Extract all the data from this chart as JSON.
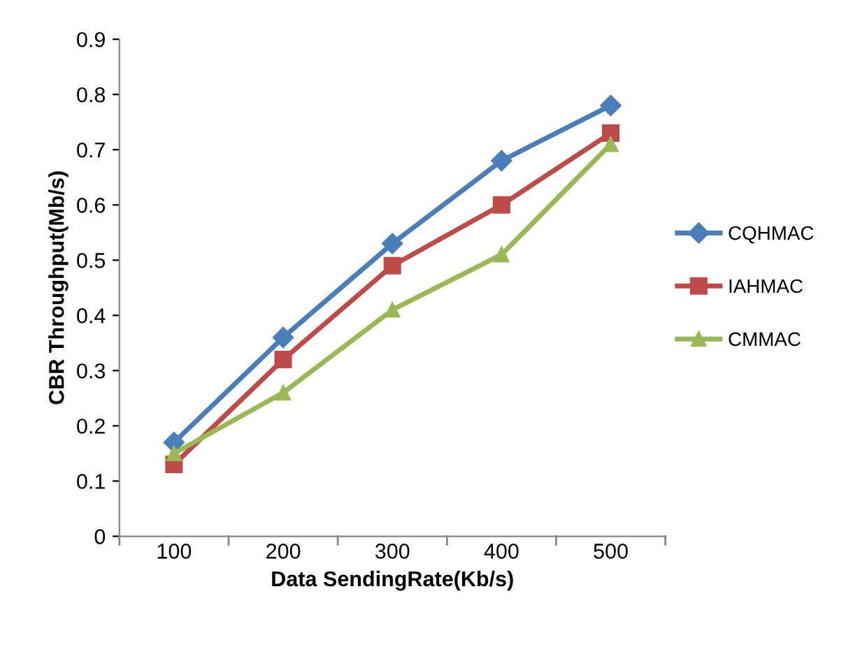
{
  "chart_data": {
    "type": "line",
    "xlabel": "Data SendingRate(Kb/s)",
    "ylabel": "CBR Throughput(Mb/s)",
    "categories": [
      "100",
      "200",
      "300",
      "400",
      "500"
    ],
    "series": [
      {
        "name": "CQHMAC",
        "color": "#4a7ebb",
        "values": [
          0.17,
          0.36,
          0.53,
          0.68,
          0.78
        ],
        "marker": "diamond"
      },
      {
        "name": "IAHMAC",
        "color": "#be4b48",
        "values": [
          0.13,
          0.32,
          0.49,
          0.6,
          0.73
        ],
        "marker": "square"
      },
      {
        "name": "CMMAC",
        "color": "#98b954",
        "values": [
          0.15,
          0.26,
          0.41,
          0.51,
          0.71
        ],
        "marker": "triangle"
      }
    ],
    "ylim": [
      0,
      0.9
    ],
    "yticks": [
      0,
      0.1,
      0.2,
      0.3,
      0.4,
      0.5,
      0.6,
      0.7,
      0.8,
      0.9
    ],
    "grid": false,
    "legend": "right",
    "line_style": "solid"
  }
}
